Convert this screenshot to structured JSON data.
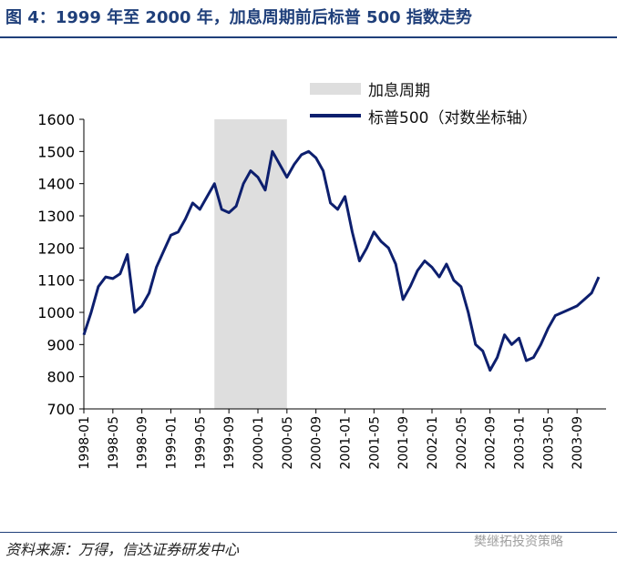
{
  "header": {
    "title": "图 4：1999 年至 2000 年，加息周期前后标普 500 指数走势"
  },
  "footer": {
    "source": "资料来源：万得，信达证券研发中心",
    "watermark": "樊继拓投资策略"
  },
  "colors": {
    "title": "#1f3f7a",
    "series": "#0d1f6e",
    "shade": "#dedede"
  },
  "chart_data": {
    "type": "line",
    "title": "",
    "xlabel": "",
    "ylabel": "",
    "ylim": [
      700,
      1600
    ],
    "y_ticks": [
      "700",
      "800",
      "900",
      "1000",
      "1100",
      "1200",
      "1300",
      "1400",
      "1500",
      "1600"
    ],
    "x_ticks": [
      "1998-01",
      "1998-05",
      "1998-09",
      "1999-01",
      "1999-05",
      "1999-09",
      "2000-01",
      "2000-05",
      "2000-09",
      "2001-01",
      "2001-05",
      "2001-09",
      "2002-01",
      "2002-05",
      "2002-09",
      "2003-01",
      "2003-05",
      "2003-09"
    ],
    "x_range": [
      "1998-01",
      "2003-12"
    ],
    "grid": false,
    "legend": "top-right",
    "shaded_region": {
      "label": "加息周期",
      "start": "1999-07",
      "end": "2000-05"
    },
    "series": [
      {
        "name": "标普500（对数坐标轴）",
        "x": [
          "1998-01",
          "1998-02",
          "1998-03",
          "1998-04",
          "1998-05",
          "1998-06",
          "1998-07",
          "1998-08",
          "1998-09",
          "1998-10",
          "1998-11",
          "1998-12",
          "1999-01",
          "1999-02",
          "1999-03",
          "1999-04",
          "1999-05",
          "1999-06",
          "1999-07",
          "1999-08",
          "1999-09",
          "1999-10",
          "1999-11",
          "1999-12",
          "2000-01",
          "2000-02",
          "2000-03",
          "2000-04",
          "2000-05",
          "2000-06",
          "2000-07",
          "2000-08",
          "2000-09",
          "2000-10",
          "2000-11",
          "2000-12",
          "2001-01",
          "2001-02",
          "2001-03",
          "2001-04",
          "2001-05",
          "2001-06",
          "2001-07",
          "2001-08",
          "2001-09",
          "2001-10",
          "2001-11",
          "2001-12",
          "2002-01",
          "2002-02",
          "2002-03",
          "2002-04",
          "2002-05",
          "2002-06",
          "2002-07",
          "2002-08",
          "2002-09",
          "2002-10",
          "2002-11",
          "2002-12",
          "2003-01",
          "2003-02",
          "2003-03",
          "2003-04",
          "2003-05",
          "2003-06",
          "2003-07",
          "2003-08",
          "2003-09",
          "2003-10",
          "2003-11",
          "2003-12"
        ],
        "values": [
          930,
          1000,
          1080,
          1110,
          1105,
          1120,
          1180,
          1000,
          1020,
          1060,
          1140,
          1190,
          1240,
          1250,
          1290,
          1340,
          1320,
          1360,
          1400,
          1320,
          1310,
          1330,
          1400,
          1440,
          1420,
          1380,
          1500,
          1460,
          1420,
          1460,
          1490,
          1500,
          1480,
          1440,
          1340,
          1320,
          1360,
          1250,
          1160,
          1200,
          1250,
          1220,
          1200,
          1150,
          1040,
          1080,
          1130,
          1160,
          1140,
          1110,
          1150,
          1100,
          1080,
          1000,
          900,
          880,
          820,
          860,
          930,
          900,
          920,
          850,
          860,
          900,
          950,
          990,
          1000,
          1010,
          1020,
          1040,
          1060,
          1110
        ]
      }
    ]
  }
}
